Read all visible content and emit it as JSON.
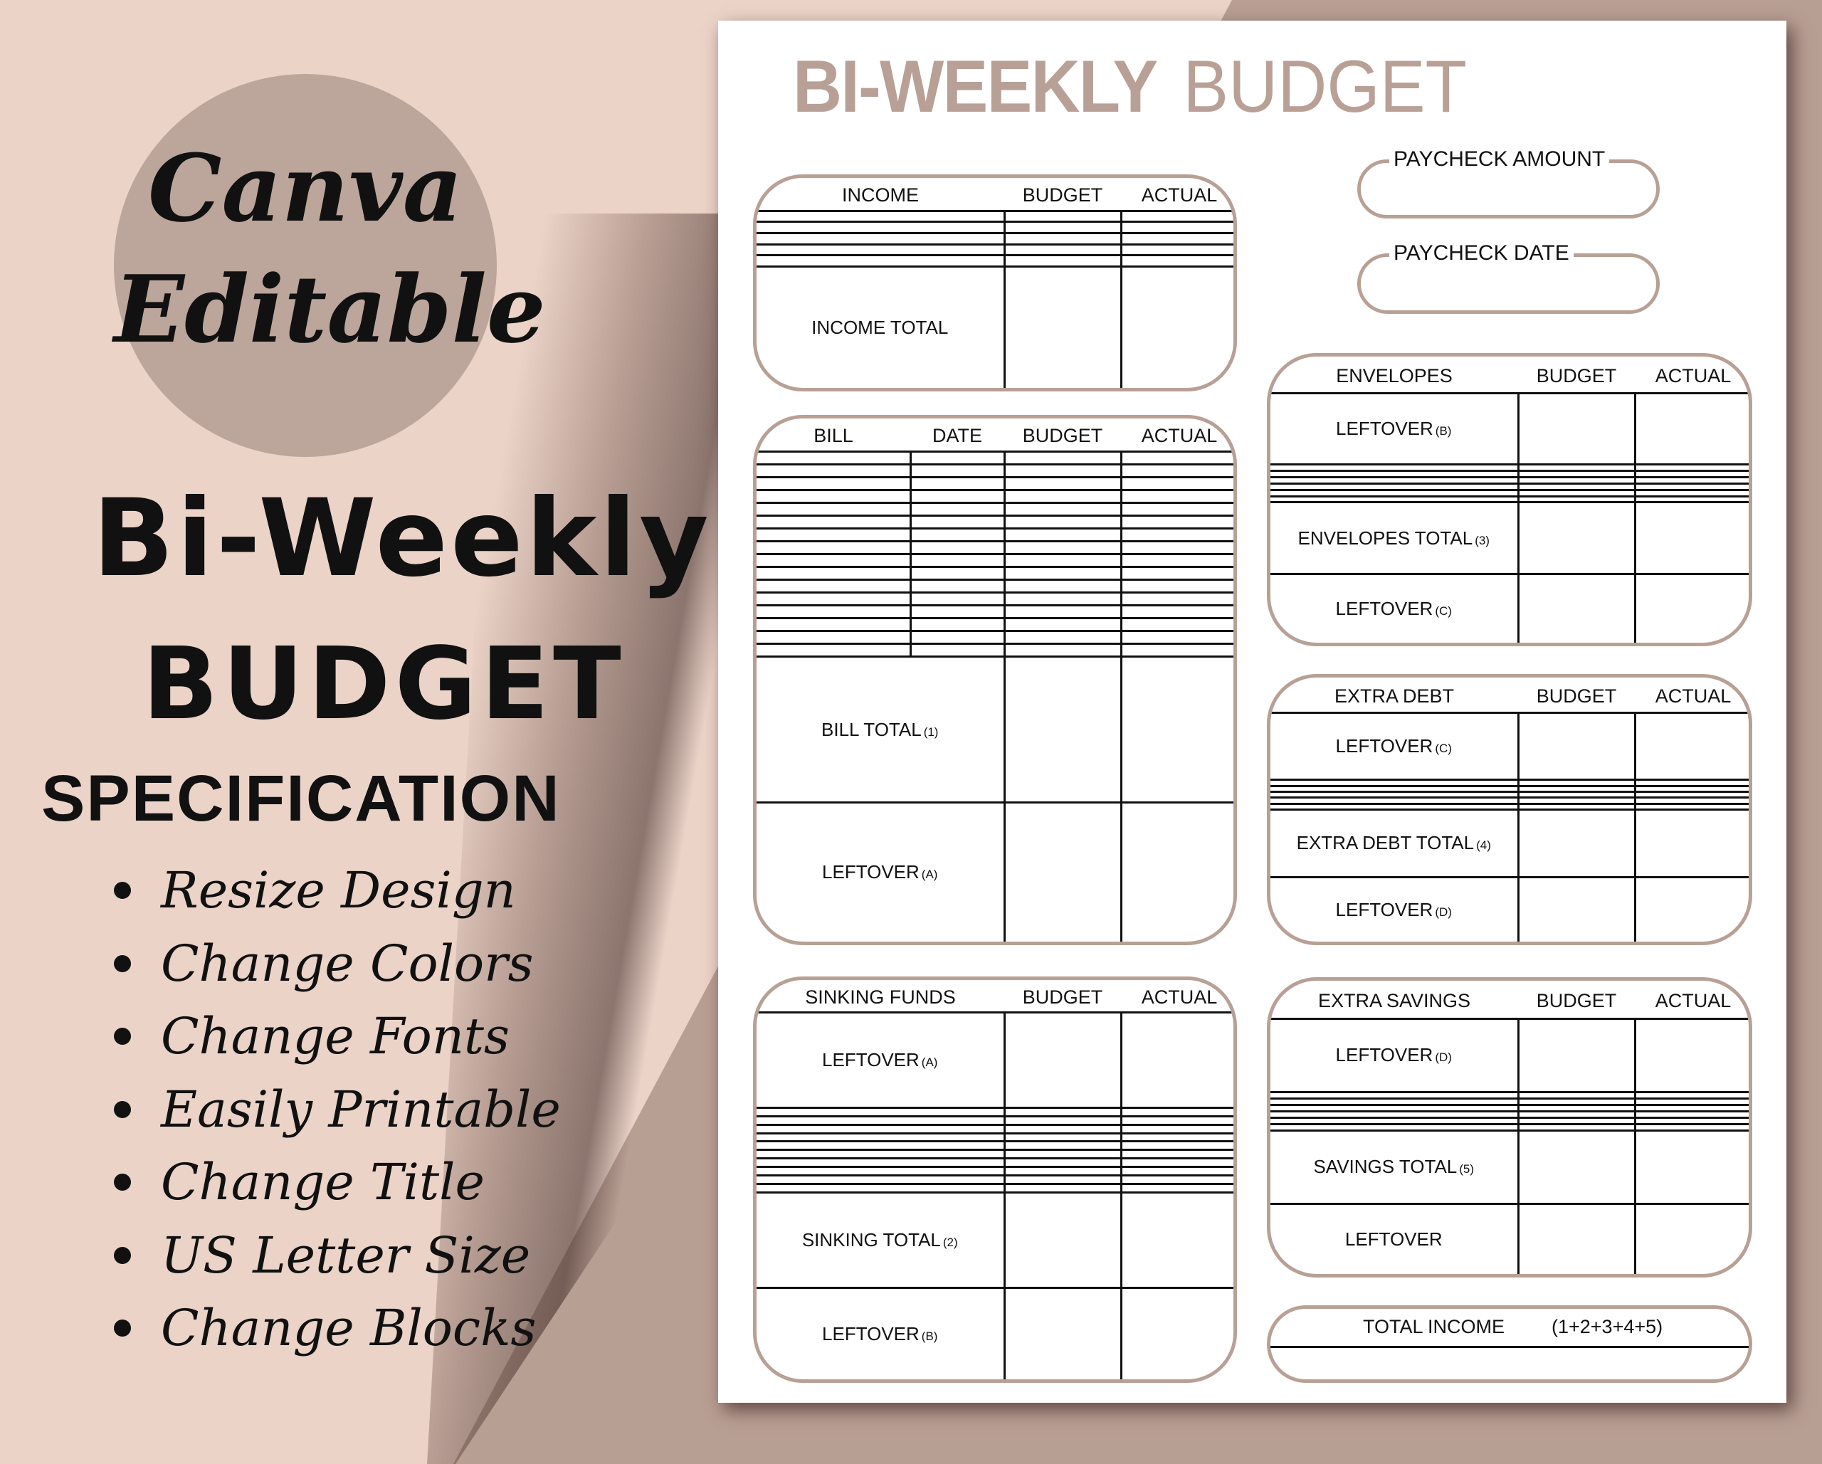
{
  "colors": {
    "accent": "#b8a095",
    "background": "#ebd3c8",
    "circle": "#bca59b"
  },
  "promo": {
    "badge_line1": "Canva",
    "badge_line2": "Editable",
    "headline1": "Bi-Weekly",
    "headline2": "BUDGET",
    "spec_title": "SPECIFICATION",
    "features": [
      "Resize Design",
      "Change Colors",
      "Change Fonts",
      "Easily Printable",
      "Change Title",
      "US Letter Size",
      "Change Blocks"
    ]
  },
  "sheet": {
    "title_bold": "BI-WEEKLY",
    "title_light": "BUDGET",
    "paycheck_amount": "PAYCHECK AMOUNT",
    "paycheck_date": "PAYCHECK DATE",
    "tables": {
      "income": {
        "headers": [
          "INCOME",
          "BUDGET",
          "ACTUAL"
        ],
        "rows": [
          {
            "label": ""
          },
          {
            "label": ""
          },
          {
            "label": ""
          },
          {
            "label": ""
          },
          {
            "label": ""
          },
          {
            "label": "INCOME TOTAL",
            "note": ""
          }
        ]
      },
      "bill": {
        "headers": [
          "BILL",
          "DATE",
          "BUDGET",
          "ACTUAL"
        ],
        "rows": [
          {
            "label": ""
          },
          {
            "label": ""
          },
          {
            "label": ""
          },
          {
            "label": ""
          },
          {
            "label": ""
          },
          {
            "label": ""
          },
          {
            "label": ""
          },
          {
            "label": ""
          },
          {
            "label": ""
          },
          {
            "label": ""
          },
          {
            "label": ""
          },
          {
            "label": ""
          },
          {
            "label": ""
          },
          {
            "label": ""
          },
          {
            "label": ""
          },
          {
            "label": ""
          },
          {
            "label": "BILL TOTAL",
            "note": "(1)"
          },
          {
            "label": "LEFTOVER",
            "note": "(A)"
          }
        ]
      },
      "sinking": {
        "headers": [
          "SINKING FUNDS",
          "BUDGET",
          "ACTUAL"
        ],
        "rows": [
          {
            "label": "LEFTOVER",
            "note": "(A)"
          },
          {
            "label": ""
          },
          {
            "label": ""
          },
          {
            "label": ""
          },
          {
            "label": ""
          },
          {
            "label": ""
          },
          {
            "label": ""
          },
          {
            "label": ""
          },
          {
            "label": ""
          },
          {
            "label": ""
          },
          {
            "label": ""
          },
          {
            "label": "SINKING TOTAL",
            "note": "(2)"
          },
          {
            "label": "LEFTOVER",
            "note": "(B)"
          }
        ]
      },
      "envelopes": {
        "headers": [
          "ENVELOPES",
          "BUDGET",
          "ACTUAL"
        ],
        "rows": [
          {
            "label": "LEFTOVER",
            "note": "(B)"
          },
          {
            "label": ""
          },
          {
            "label": ""
          },
          {
            "label": ""
          },
          {
            "label": ""
          },
          {
            "label": ""
          },
          {
            "label": ""
          },
          {
            "label": "ENVELOPES TOTAL",
            "note": "(3)"
          },
          {
            "label": "LEFTOVER",
            "note": "(C)"
          }
        ]
      },
      "extra_debt": {
        "headers": [
          "EXTRA DEBT",
          "BUDGET",
          "ACTUAL"
        ],
        "rows": [
          {
            "label": "LEFTOVER",
            "note": "(C)"
          },
          {
            "label": ""
          },
          {
            "label": ""
          },
          {
            "label": ""
          },
          {
            "label": ""
          },
          {
            "label": ""
          },
          {
            "label": "EXTRA DEBT TOTAL",
            "note": "(4)"
          },
          {
            "label": "LEFTOVER",
            "note": "(D)"
          }
        ]
      },
      "extra_savings": {
        "headers": [
          "EXTRA SAVINGS",
          "BUDGET",
          "ACTUAL"
        ],
        "rows": [
          {
            "label": "LEFTOVER",
            "note": "(D)"
          },
          {
            "label": ""
          },
          {
            "label": ""
          },
          {
            "label": ""
          },
          {
            "label": ""
          },
          {
            "label": ""
          },
          {
            "label": ""
          },
          {
            "label": "SAVINGS TOTAL",
            "note": "(5)"
          },
          {
            "label": "LEFTOVER",
            "note": ""
          }
        ]
      }
    },
    "total_income": {
      "label": "TOTAL INCOME",
      "formula": "(1+2+3+4+5)"
    }
  }
}
